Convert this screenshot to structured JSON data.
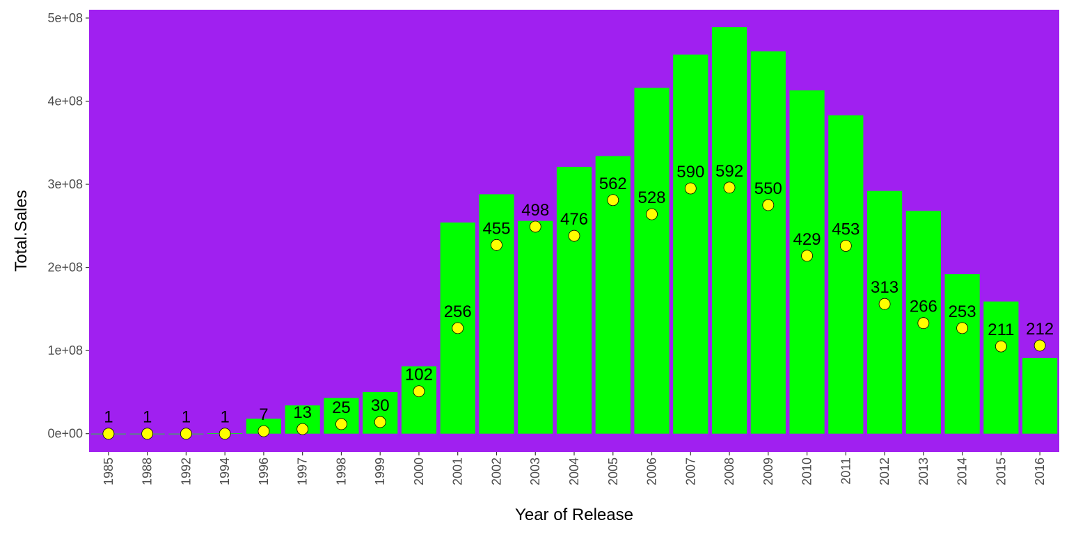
{
  "chart_data": {
    "type": "bar",
    "title": "",
    "xlabel": "Year of Release",
    "ylabel": "Total.Sales",
    "ylim": [
      -22000000,
      510000000
    ],
    "yticks": [
      0,
      100000000,
      200000000,
      300000000,
      400000000,
      500000000
    ],
    "ytick_labels": [
      "0e+00",
      "1e+08",
      "2e+08",
      "3e+08",
      "4e+08",
      "5e+08"
    ],
    "grid": false,
    "legend": "none",
    "categories": [
      "1985",
      "1988",
      "1992",
      "1994",
      "1996",
      "1997",
      "1998",
      "1999",
      "2000",
      "2001",
      "2002",
      "2003",
      "2004",
      "2005",
      "2006",
      "2007",
      "2008",
      "2009",
      "2010",
      "2011",
      "2012",
      "2013",
      "2014",
      "2015",
      "2016"
    ],
    "series": [
      {
        "type": "bar",
        "values": [
          0,
          0,
          0,
          500000,
          18000000,
          34000000,
          43000000,
          50000000,
          81000000,
          254000000,
          288000000,
          256000000,
          321000000,
          334000000,
          416000000,
          456000000,
          489000000,
          460000000,
          413000000,
          383000000,
          292000000,
          268000000,
          192000000,
          159000000,
          91000000
        ]
      },
      {
        "type": "point",
        "values": [
          0,
          0,
          0,
          0,
          3000000,
          5500000,
          11500000,
          14000000,
          51000000,
          127000000,
          227000000,
          249000000,
          238000000,
          281000000,
          264000000,
          295000000,
          296000000,
          275000000,
          214000000,
          226000000,
          156000000,
          133000000,
          127000000,
          105000000,
          106000000
        ],
        "labels": [
          "1",
          "1",
          "1",
          "1",
          "7",
          "13",
          "25",
          "30",
          "102",
          "256",
          "455",
          "498",
          "476",
          "562",
          "528",
          "590",
          "592",
          "550",
          "429",
          "453",
          "313",
          "266",
          "253",
          "211",
          "212"
        ]
      }
    ],
    "colors": {
      "panel_background": "#a020f0",
      "bar_fill": "#00ff00",
      "point_fill": "#ffff00",
      "point_stroke": "#000000"
    }
  }
}
